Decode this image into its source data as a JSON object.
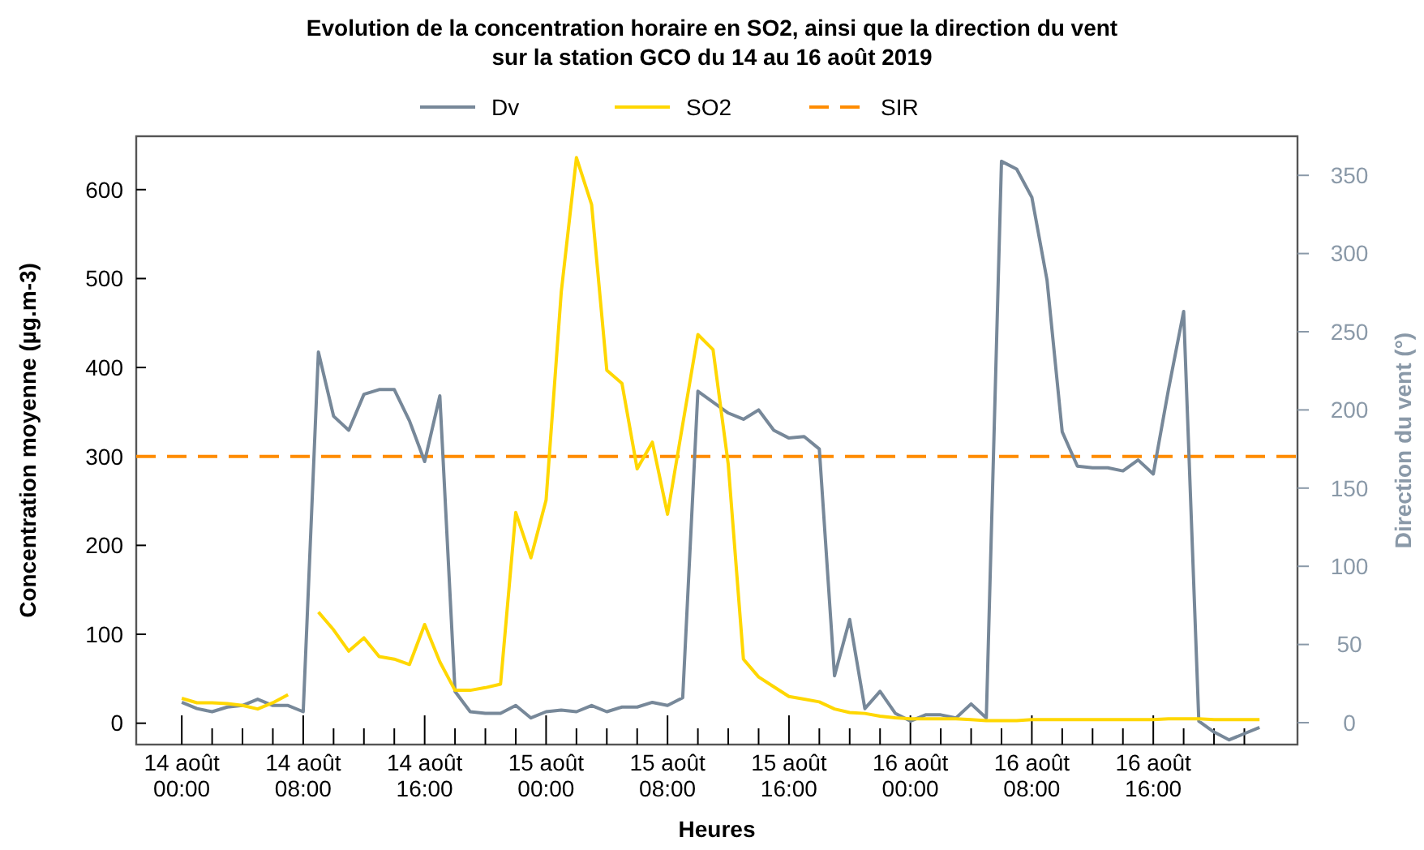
{
  "chart_data": {
    "type": "line",
    "title": "Evolution de la concentration horaire en SO2, ainsi que la direction du vent\nsur la station GCO du 14 au 16 août 2019",
    "xlabel": "Heures",
    "ylabel": "Concentration moyenne (µg.m-3)",
    "y2label": "Direction du vent (°)",
    "x": [
      "2019-08-14T00:00",
      "2019-08-14T01:00",
      "2019-08-14T02:00",
      "2019-08-14T03:00",
      "2019-08-14T04:00",
      "2019-08-14T05:00",
      "2019-08-14T06:00",
      "2019-08-14T07:00",
      "2019-08-14T08:00",
      "2019-08-14T09:00",
      "2019-08-14T10:00",
      "2019-08-14T11:00",
      "2019-08-14T12:00",
      "2019-08-14T13:00",
      "2019-08-14T14:00",
      "2019-08-14T15:00",
      "2019-08-14T16:00",
      "2019-08-14T17:00",
      "2019-08-14T18:00",
      "2019-08-14T19:00",
      "2019-08-14T20:00",
      "2019-08-14T21:00",
      "2019-08-14T22:00",
      "2019-08-14T23:00",
      "2019-08-15T00:00",
      "2019-08-15T01:00",
      "2019-08-15T02:00",
      "2019-08-15T03:00",
      "2019-08-15T04:00",
      "2019-08-15T05:00",
      "2019-08-15T06:00",
      "2019-08-15T07:00",
      "2019-08-15T08:00",
      "2019-08-15T09:00",
      "2019-08-15T10:00",
      "2019-08-15T11:00",
      "2019-08-15T12:00",
      "2019-08-15T13:00",
      "2019-08-15T14:00",
      "2019-08-15T15:00",
      "2019-08-15T16:00",
      "2019-08-15T17:00",
      "2019-08-15T18:00",
      "2019-08-15T19:00",
      "2019-08-15T20:00",
      "2019-08-15T21:00",
      "2019-08-15T22:00",
      "2019-08-15T23:00",
      "2019-08-16T00:00",
      "2019-08-16T01:00",
      "2019-08-16T02:00",
      "2019-08-16T03:00",
      "2019-08-16T04:00",
      "2019-08-16T05:00",
      "2019-08-16T06:00",
      "2019-08-16T07:00",
      "2019-08-16T08:00",
      "2019-08-16T09:00",
      "2019-08-16T10:00",
      "2019-08-16T11:00",
      "2019-08-16T12:00",
      "2019-08-16T13:00",
      "2019-08-16T14:00",
      "2019-08-16T15:00",
      "2019-08-16T16:00",
      "2019-08-16T17:00",
      "2019-08-16T18:00",
      "2019-08-16T19:00",
      "2019-08-16T20:00",
      "2019-08-16T21:00",
      "2019-08-16T22:00",
      "2019-08-16T23:00"
    ],
    "series": [
      {
        "name": "Dv",
        "color": "#778899",
        "axis": "y2",
        "values": [
          13,
          9,
          7,
          10,
          11,
          15,
          11,
          11,
          7,
          237,
          196,
          187,
          210,
          213,
          213,
          193,
          167,
          209,
          20,
          7,
          6,
          6,
          11,
          3,
          7,
          8,
          7,
          11,
          7,
          10,
          10,
          13,
          11,
          16,
          212,
          205,
          198,
          194,
          200,
          187,
          182,
          183,
          175,
          30,
          66,
          9,
          20,
          6,
          1,
          5,
          5,
          3,
          12,
          3,
          359,
          354,
          336,
          283,
          186,
          164,
          163,
          163,
          161,
          168,
          159,
          213,
          263,
          1,
          -6,
          -11,
          -7,
          -3
        ]
      },
      {
        "name": "SO2",
        "color": "#ffd700",
        "values": [
          28,
          23,
          23,
          22,
          20,
          16,
          23,
          32,
          null,
          125,
          105,
          81,
          96,
          75,
          72,
          66,
          111,
          69,
          37,
          37,
          40,
          44,
          237,
          186,
          251,
          485,
          636,
          583,
          397,
          382,
          286,
          316,
          235,
          336,
          437,
          420,
          291,
          72,
          52,
          41,
          30,
          27,
          24,
          16,
          12,
          11,
          8,
          6,
          5,
          5,
          5,
          5,
          4,
          3,
          3,
          3,
          4,
          4,
          4,
          4,
          4,
          4,
          4,
          4,
          4,
          5,
          5,
          5,
          4,
          4,
          4,
          4
        ]
      }
    ],
    "ref_lines": [
      {
        "axis": "y",
        "value": 300,
        "label": "SIR",
        "color": "#ff8c00",
        "line_style": "dashed"
      }
    ],
    "xlim": [
      "2019-08-13T21:00",
      "2019-08-17T01:30"
    ],
    "xticks": [
      {
        "value": "2019-08-14T00:00",
        "label": "14 août\n00:00"
      },
      {
        "value": "2019-08-14T02:00",
        "label": null
      },
      {
        "value": "2019-08-14T04:00",
        "label": null
      },
      {
        "value": "2019-08-14T06:00",
        "label": null
      },
      {
        "value": "2019-08-14T08:00",
        "label": "14 août\n08:00"
      },
      {
        "value": "2019-08-14T10:00",
        "label": null
      },
      {
        "value": "2019-08-14T12:00",
        "label": null
      },
      {
        "value": "2019-08-14T14:00",
        "label": null
      },
      {
        "value": "2019-08-14T16:00",
        "label": "14 août\n16:00"
      },
      {
        "value": "2019-08-14T18:00",
        "label": null
      },
      {
        "value": "2019-08-14T20:00",
        "label": null
      },
      {
        "value": "2019-08-14T22:00",
        "label": null
      },
      {
        "value": "2019-08-15T00:00",
        "label": "15 août\n00:00"
      },
      {
        "value": "2019-08-15T02:00",
        "label": null
      },
      {
        "value": "2019-08-15T04:00",
        "label": null
      },
      {
        "value": "2019-08-15T06:00",
        "label": null
      },
      {
        "value": "2019-08-15T08:00",
        "label": "15 août\n08:00"
      },
      {
        "value": "2019-08-15T10:00",
        "label": null
      },
      {
        "value": "2019-08-15T12:00",
        "label": null
      },
      {
        "value": "2019-08-15T14:00",
        "label": null
      },
      {
        "value": "2019-08-15T16:00",
        "label": "15 août\n16:00"
      },
      {
        "value": "2019-08-15T18:00",
        "label": null
      },
      {
        "value": "2019-08-15T20:00",
        "label": null
      },
      {
        "value": "2019-08-15T22:00",
        "label": null
      },
      {
        "value": "2019-08-16T00:00",
        "label": "16 août\n00:00"
      },
      {
        "value": "2019-08-16T02:00",
        "label": null
      },
      {
        "value": "2019-08-16T04:00",
        "label": null
      },
      {
        "value": "2019-08-16T06:00",
        "label": null
      },
      {
        "value": "2019-08-16T08:00",
        "label": "16 août\n08:00"
      },
      {
        "value": "2019-08-16T10:00",
        "label": null
      },
      {
        "value": "2019-08-16T12:00",
        "label": null
      },
      {
        "value": "2019-08-16T14:00",
        "label": null
      },
      {
        "value": "2019-08-16T16:00",
        "label": "16 août\n16:00"
      },
      {
        "value": "2019-08-16T18:00",
        "label": null
      },
      {
        "value": "2019-08-16T20:00",
        "label": null
      },
      {
        "value": "2019-08-16T22:00",
        "label": null
      }
    ],
    "ylim": [
      -24,
      660
    ],
    "yticks": [
      0,
      100,
      200,
      300,
      400,
      500,
      600
    ],
    "y2lim": [
      -14,
      375
    ],
    "y2ticks": [
      0,
      50,
      100,
      150,
      200,
      250,
      300,
      350
    ],
    "legend": "top",
    "line_style": "solid",
    "marker": "none"
  }
}
